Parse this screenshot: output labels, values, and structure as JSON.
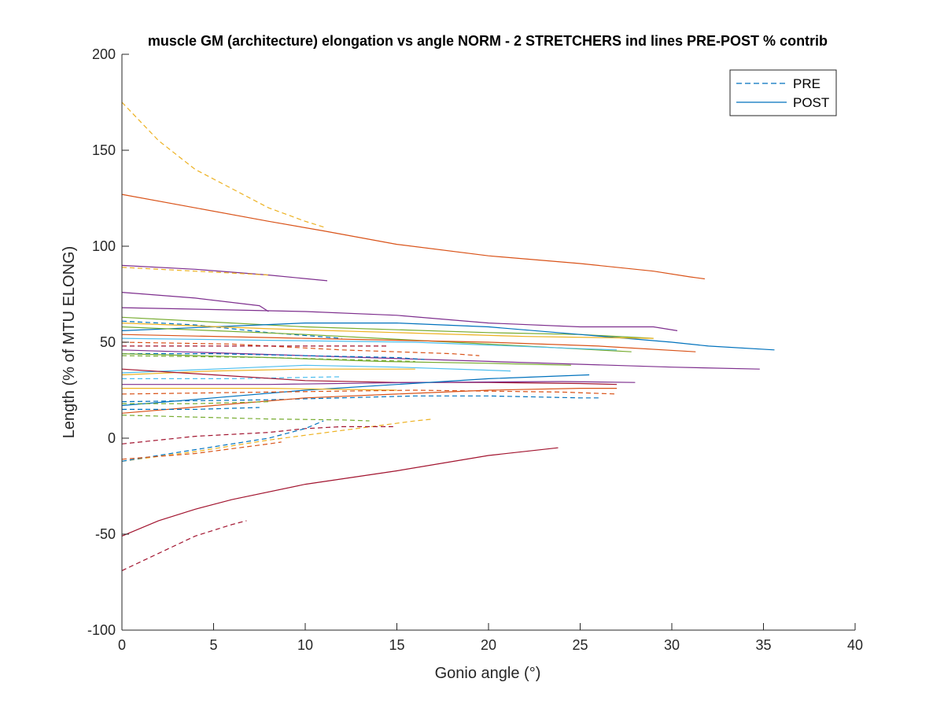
{
  "chart_data": {
    "type": "line",
    "title": "muscle GM (architecture) elongation vs angle NORM - 2 STRETCHERS ind lines PRE-POST % contrib",
    "xlabel": "Gonio angle (°)",
    "ylabel": "Length (% of MTU ELONG)",
    "xlim": [
      0,
      40
    ],
    "ylim": [
      -100,
      200
    ],
    "xticks": [
      "0",
      "5",
      "10",
      "15",
      "20",
      "25",
      "30",
      "35",
      "40"
    ],
    "yticks": [
      "-100",
      "-50",
      "0",
      "50",
      "100",
      "150",
      "200"
    ],
    "grid": false,
    "legend": {
      "placement": "top-right",
      "entries": [
        {
          "label": "PRE",
          "style": "dashed",
          "color": "#0072BD"
        },
        {
          "label": "POST",
          "style": "solid",
          "color": "#0072BD"
        }
      ]
    },
    "series": [
      {
        "color": "#EDB120",
        "style": "dashed",
        "points": [
          [
            0,
            175
          ],
          [
            2,
            155
          ],
          [
            4,
            140
          ],
          [
            6,
            130
          ],
          [
            8,
            120
          ],
          [
            10,
            113
          ],
          [
            11,
            110
          ]
        ]
      },
      {
        "color": "#D95319",
        "style": "solid",
        "points": [
          [
            0,
            127
          ],
          [
            4,
            120
          ],
          [
            8,
            113
          ],
          [
            11,
            108
          ],
          [
            15,
            101
          ],
          [
            20,
            95
          ],
          [
            25,
            91
          ],
          [
            29,
            87
          ],
          [
            31,
            84
          ],
          [
            31.8,
            83
          ]
        ]
      },
      {
        "color": "#7E2F8E",
        "style": "solid",
        "points": [
          [
            0,
            90
          ],
          [
            4,
            88
          ],
          [
            8,
            85
          ],
          [
            11.2,
            82
          ]
        ]
      },
      {
        "color": "#EDB120",
        "style": "dashed",
        "points": [
          [
            0,
            89
          ],
          [
            4,
            87
          ],
          [
            8,
            85
          ]
        ]
      },
      {
        "color": "#7E2F8E",
        "style": "solid",
        "points": [
          [
            0,
            76
          ],
          [
            4,
            73
          ],
          [
            7.5,
            69
          ],
          [
            8,
            66
          ]
        ]
      },
      {
        "color": "#7E2F8E",
        "style": "solid",
        "points": [
          [
            0,
            68
          ],
          [
            5,
            67
          ],
          [
            10,
            66
          ],
          [
            15,
            64
          ],
          [
            20,
            60
          ],
          [
            25,
            58
          ],
          [
            29,
            58
          ],
          [
            30.3,
            56
          ]
        ]
      },
      {
        "color": "#77AC30",
        "style": "solid",
        "points": [
          [
            0,
            63
          ],
          [
            10,
            58
          ],
          [
            20,
            55
          ],
          [
            25,
            54
          ],
          [
            29,
            52
          ]
        ]
      },
      {
        "color": "#0072BD",
        "style": "solid",
        "points": [
          [
            0,
            56
          ],
          [
            5,
            58
          ],
          [
            10,
            60
          ],
          [
            15,
            60
          ],
          [
            20,
            58
          ],
          [
            25,
            54
          ],
          [
            30,
            50
          ],
          [
            32,
            48
          ],
          [
            35.6,
            46
          ]
        ]
      },
      {
        "color": "#0072BD",
        "style": "dashed",
        "points": [
          [
            0,
            61
          ],
          [
            4,
            59
          ],
          [
            8,
            55
          ],
          [
            12,
            52
          ]
        ]
      },
      {
        "color": "#EDB120",
        "style": "solid",
        "points": [
          [
            0,
            60
          ],
          [
            8,
            57
          ],
          [
            15,
            55
          ],
          [
            22,
            53
          ],
          [
            29,
            52
          ]
        ]
      },
      {
        "color": "#77AC30",
        "style": "solid",
        "points": [
          [
            0,
            58
          ],
          [
            10,
            54
          ],
          [
            20,
            49
          ],
          [
            27.8,
            45
          ]
        ]
      },
      {
        "color": "#D95319",
        "style": "solid",
        "points": [
          [
            0,
            54
          ],
          [
            10,
            52
          ],
          [
            20,
            50
          ],
          [
            26,
            48
          ],
          [
            31.3,
            45
          ]
        ]
      },
      {
        "color": "#4DBEEE",
        "style": "solid",
        "points": [
          [
            0,
            52
          ],
          [
            8,
            51
          ],
          [
            16,
            50
          ],
          [
            24,
            47
          ],
          [
            27,
            46
          ]
        ]
      },
      {
        "color": "#D95319",
        "style": "dashed",
        "points": [
          [
            0,
            50
          ],
          [
            6,
            49
          ],
          [
            12,
            46
          ],
          [
            18,
            44
          ],
          [
            19.5,
            43
          ]
        ]
      },
      {
        "color": "#A2142F",
        "style": "dashed",
        "points": [
          [
            0,
            48
          ],
          [
            6,
            48
          ],
          [
            12,
            48
          ],
          [
            14.5,
            48
          ]
        ]
      },
      {
        "color": "#7E2F8E",
        "style": "solid",
        "points": [
          [
            0,
            46
          ],
          [
            10,
            43
          ],
          [
            20,
            40
          ],
          [
            30,
            37
          ],
          [
            34.8,
            36
          ]
        ]
      },
      {
        "color": "#0072BD",
        "style": "dashed",
        "points": [
          [
            0,
            44
          ],
          [
            5,
            44
          ],
          [
            10,
            43
          ],
          [
            15,
            42
          ],
          [
            16.5,
            41
          ]
        ]
      },
      {
        "color": "#77AC30",
        "style": "solid",
        "points": [
          [
            0,
            44
          ],
          [
            8,
            42
          ],
          [
            14,
            40
          ],
          [
            20,
            39
          ],
          [
            24.5,
            38
          ]
        ]
      },
      {
        "color": "#77AC30",
        "style": "dashed",
        "points": [
          [
            0,
            43
          ],
          [
            8,
            42
          ],
          [
            16,
            40
          ]
        ]
      },
      {
        "color": "#4DBEEE",
        "style": "solid",
        "points": [
          [
            0,
            34
          ],
          [
            5,
            36
          ],
          [
            10,
            38
          ],
          [
            15,
            37
          ],
          [
            21.2,
            35
          ]
        ]
      },
      {
        "color": "#EDB120",
        "style": "solid",
        "points": [
          [
            0,
            33
          ],
          [
            5,
            35
          ],
          [
            10,
            36
          ],
          [
            16,
            36
          ]
        ]
      },
      {
        "color": "#4DBEEE",
        "style": "dashed",
        "points": [
          [
            0,
            31
          ],
          [
            6,
            31
          ],
          [
            12,
            32
          ]
        ]
      },
      {
        "color": "#A2142F",
        "style": "solid",
        "points": [
          [
            0,
            36
          ],
          [
            5,
            33
          ],
          [
            10,
            30
          ],
          [
            15,
            29
          ],
          [
            20,
            29
          ],
          [
            25,
            28.5
          ],
          [
            27,
            28
          ]
        ]
      },
      {
        "color": "#7E2F8E",
        "style": "solid",
        "points": [
          [
            0,
            28
          ],
          [
            8,
            28
          ],
          [
            16,
            29
          ],
          [
            24,
            29.5
          ],
          [
            28,
            29
          ]
        ]
      },
      {
        "color": "#0072BD",
        "style": "solid",
        "points": [
          [
            0,
            17
          ],
          [
            5,
            21
          ],
          [
            10,
            25
          ],
          [
            15,
            28
          ],
          [
            20,
            31
          ],
          [
            25.5,
            33
          ]
        ]
      },
      {
        "color": "#EDB120",
        "style": "solid",
        "points": [
          [
            0,
            26
          ],
          [
            8,
            26
          ],
          [
            15,
            25
          ]
        ]
      },
      {
        "color": "#D95319",
        "style": "dashed",
        "points": [
          [
            0,
            23
          ],
          [
            8,
            24
          ],
          [
            16,
            25
          ],
          [
            24,
            24
          ],
          [
            27,
            23
          ]
        ]
      },
      {
        "color": "#0072BD",
        "style": "dashed",
        "points": [
          [
            0,
            19
          ],
          [
            8,
            20
          ],
          [
            16,
            22
          ],
          [
            20,
            22
          ],
          [
            25,
            21
          ],
          [
            26,
            21
          ]
        ]
      },
      {
        "color": "#D95319",
        "style": "solid",
        "points": [
          [
            0,
            13
          ],
          [
            5,
            17
          ],
          [
            10,
            21
          ],
          [
            15,
            23
          ],
          [
            20,
            25
          ],
          [
            25,
            26
          ],
          [
            27,
            26
          ]
        ]
      },
      {
        "color": "#77AC30",
        "style": "dashed",
        "points": [
          [
            0,
            18
          ],
          [
            4,
            18
          ],
          [
            8,
            19
          ]
        ]
      },
      {
        "color": "#0072BD",
        "style": "dashed",
        "points": [
          [
            0,
            15
          ],
          [
            4,
            15
          ],
          [
            7.5,
            16
          ]
        ]
      },
      {
        "color": "#77AC30",
        "style": "dashed",
        "points": [
          [
            0,
            12
          ],
          [
            4,
            11
          ],
          [
            8,
            10
          ],
          [
            12,
            9.5
          ],
          [
            13.5,
            9
          ]
        ]
      },
      {
        "color": "#EDB120",
        "style": "dashed",
        "points": [
          [
            0,
            -12
          ],
          [
            4,
            -7
          ],
          [
            8,
            -1
          ],
          [
            12,
            4
          ],
          [
            16,
            9
          ],
          [
            17,
            10
          ]
        ]
      },
      {
        "color": "#A2142F",
        "style": "dashed",
        "points": [
          [
            0,
            -3
          ],
          [
            4,
            1
          ],
          [
            8,
            3
          ],
          [
            10,
            5
          ],
          [
            12,
            6
          ],
          [
            14.8,
            6
          ]
        ]
      },
      {
        "color": "#0072BD",
        "style": "dashed",
        "points": [
          [
            0,
            -12
          ],
          [
            4,
            -6
          ],
          [
            8,
            0
          ],
          [
            10,
            5
          ],
          [
            11,
            9
          ]
        ]
      },
      {
        "color": "#D95319",
        "style": "dashed",
        "points": [
          [
            0,
            -11
          ],
          [
            4,
            -8
          ],
          [
            8,
            -3
          ],
          [
            8.7,
            -2
          ]
        ]
      },
      {
        "color": "#A2142F",
        "style": "solid",
        "points": [
          [
            0,
            -51
          ],
          [
            2,
            -43
          ],
          [
            4,
            -37
          ],
          [
            6,
            -32
          ],
          [
            10,
            -24
          ],
          [
            15,
            -17
          ],
          [
            20,
            -9
          ],
          [
            23.8,
            -5
          ]
        ]
      },
      {
        "color": "#A2142F",
        "style": "dashed",
        "points": [
          [
            0,
            -69
          ],
          [
            2,
            -60
          ],
          [
            4,
            -51
          ],
          [
            6,
            -45
          ],
          [
            6.8,
            -43
          ]
        ]
      }
    ]
  }
}
